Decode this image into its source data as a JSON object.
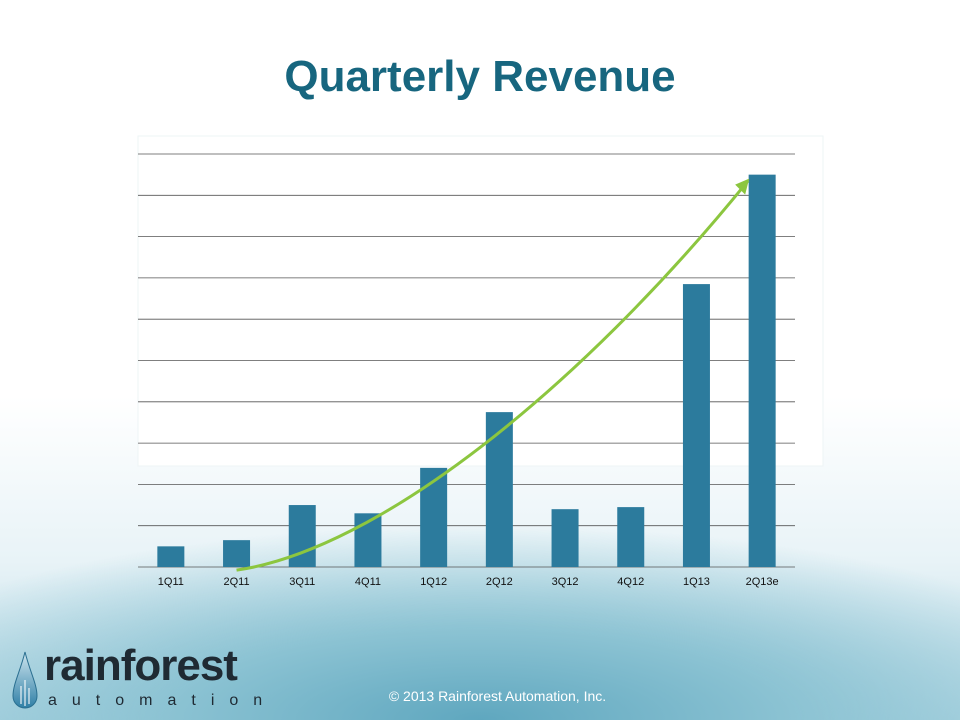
{
  "slide": {
    "title": "Quarterly Revenue",
    "copyright": "© 2013 Rainforest Automation, Inc."
  },
  "logo": {
    "name": "rainforest",
    "tagline": "automation"
  },
  "colors": {
    "title": "#17667f",
    "bar": "#2c7b9d",
    "trend_arrow": "#8cc63f",
    "grid": "#555555"
  },
  "chart_data": {
    "type": "bar",
    "title": "Quarterly Revenue",
    "xlabel": "",
    "ylabel": "",
    "categories": [
      "1Q11",
      "2Q11",
      "3Q11",
      "4Q11",
      "1Q12",
      "2Q12",
      "3Q12",
      "4Q12",
      "1Q13",
      "2Q13e"
    ],
    "values": [
      0.5,
      0.65,
      1.5,
      1.3,
      2.4,
      3.75,
      1.4,
      1.45,
      6.85,
      9.5
    ],
    "ylim": [
      0,
      10
    ],
    "y_tick_labels_shown": false,
    "grid": true,
    "legend": "none",
    "annotations": [
      {
        "type": "trend-arrow",
        "from_category": "2Q11",
        "to_category": "2Q13e"
      }
    ]
  }
}
